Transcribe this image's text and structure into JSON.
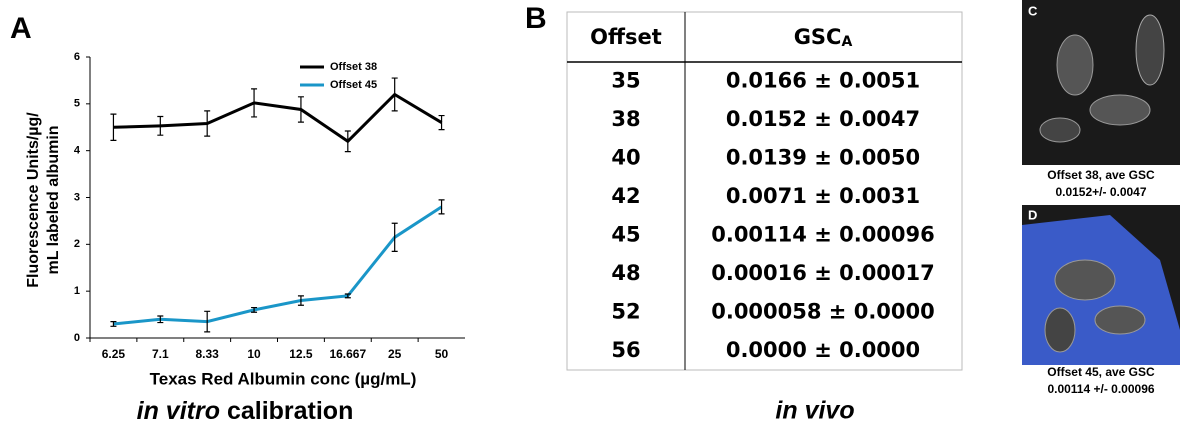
{
  "panel_labels": {
    "a": "A",
    "b": "B",
    "c": "C",
    "d": "D"
  },
  "chart_data": {
    "type": "line",
    "y_label": [
      "Fluorescence Units/µg/",
      "mL labeled albumin"
    ],
    "x_label": "Texas Red Albumin conc (µg/mL)",
    "categories": [
      "6.25",
      "7.1",
      "8.33",
      "10",
      "12.5",
      "16.667",
      "25",
      "50"
    ],
    "series": [
      {
        "name": "Offset 38",
        "color": "#000000",
        "values": [
          4.5,
          4.53,
          4.58,
          5.02,
          4.88,
          4.2,
          5.2,
          4.6
        ],
        "errors": [
          0.28,
          0.2,
          0.27,
          0.3,
          0.27,
          0.22,
          0.35,
          0.15
        ]
      },
      {
        "name": "Offset 45",
        "color": "#1a96c8",
        "values": [
          0.3,
          0.4,
          0.35,
          0.6,
          0.8,
          0.9,
          2.15,
          2.8
        ],
        "errors": [
          0.05,
          0.07,
          0.22,
          0.05,
          0.1,
          0.04,
          0.3,
          0.15
        ]
      }
    ],
    "ylim": [
      0,
      6
    ],
    "yticks": [
      0,
      1,
      2,
      3,
      4,
      5,
      6
    ],
    "legend": "top-right"
  },
  "chart_caption": [
    "in vitro",
    "calibration"
  ],
  "table": {
    "header": [
      "Offset",
      "GSC",
      "A"
    ],
    "rows": [
      [
        "35",
        "0.0166 ± 0.0051"
      ],
      [
        "38",
        "0.0152 ± 0.0047"
      ],
      [
        "40",
        "0.0139 ± 0.0050"
      ],
      [
        "42",
        "0.0071 ± 0.0031"
      ],
      [
        "45",
        "0.00114 ± 0.00096"
      ],
      [
        "48",
        "0.00016 ± 0.00017"
      ],
      [
        "52",
        "0.000058 ± 0.0000"
      ],
      [
        "56",
        "0.0000 ± 0.0000"
      ]
    ]
  },
  "table_caption": "in vivo",
  "images": [
    {
      "caption": [
        "Offset 38, ave GSC",
        "0.0152+/- 0.0047"
      ]
    },
    {
      "caption": [
        "Offset 45, ave GSC",
        "0.00114 +/- 0.00096"
      ]
    }
  ]
}
